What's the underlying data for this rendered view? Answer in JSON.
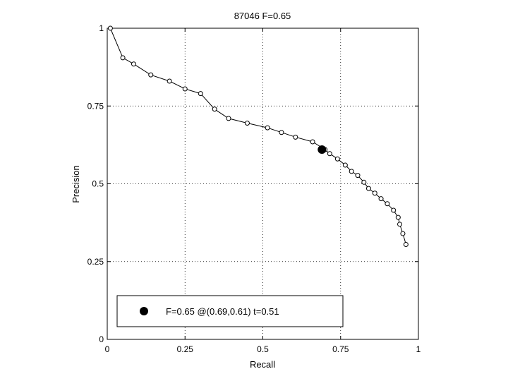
{
  "chart_data": {
    "type": "line",
    "title": "87046 F=0.65",
    "xlabel": "Recall",
    "ylabel": "Precision",
    "xlim": [
      0,
      1
    ],
    "ylim": [
      0,
      1
    ],
    "xticks": [
      0,
      0.25,
      0.5,
      0.75,
      1
    ],
    "yticks": [
      0,
      0.25,
      0.5,
      0.75,
      1
    ],
    "xtick_labels": [
      "0",
      "0.25",
      "0.5",
      "0.75",
      "1"
    ],
    "ytick_labels": [
      "0",
      "0.25",
      "0.5",
      "0.75",
      "1"
    ],
    "grid": true,
    "legend_position": "bottom-left",
    "series": [
      {
        "x": [
          0.01,
          0.05,
          0.085,
          0.14,
          0.2,
          0.25,
          0.3,
          0.345,
          0.39,
          0.45,
          0.515,
          0.56,
          0.605,
          0.66,
          0.7,
          0.715,
          0.74,
          0.765,
          0.785,
          0.805,
          0.825,
          0.84,
          0.86,
          0.88,
          0.9,
          0.92,
          0.935,
          0.94,
          0.95,
          0.96
        ],
        "y": [
          1.0,
          0.905,
          0.885,
          0.85,
          0.83,
          0.805,
          0.79,
          0.74,
          0.71,
          0.695,
          0.68,
          0.665,
          0.65,
          0.635,
          0.61,
          0.597,
          0.58,
          0.56,
          0.54,
          0.527,
          0.505,
          0.485,
          0.47,
          0.452,
          0.436,
          0.415,
          0.392,
          0.37,
          0.34,
          0.305
        ]
      }
    ],
    "highlight_point": {
      "x": 0.69,
      "y": 0.61,
      "label": "F=0.65 @(0.69,0.61) t=0.51"
    }
  }
}
